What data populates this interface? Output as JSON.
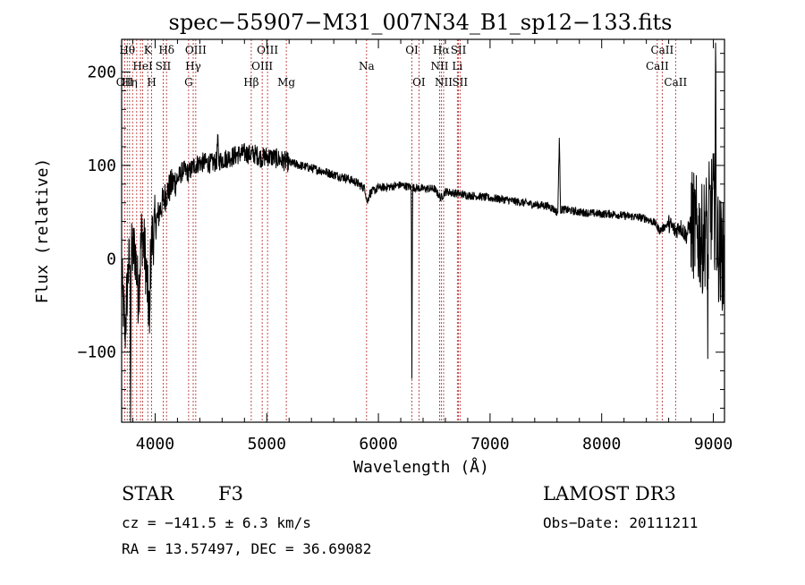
{
  "chart_data": {
    "type": "line",
    "title": "spec−55907−M31_007N34_B1_sp12−133.fits",
    "xlabel": "Wavelength (Å)",
    "ylabel": "Flux (relative)",
    "xlim": [
      3700,
      9100
    ],
    "ylim": [
      -175,
      235
    ],
    "xticks": [
      {
        "value": 4000,
        "label": "4000"
      },
      {
        "value": 5000,
        "label": "5000"
      },
      {
        "value": 6000,
        "label": "6000"
      },
      {
        "value": 7000,
        "label": "7000"
      },
      {
        "value": 8000,
        "label": "8000"
      },
      {
        "value": 9000,
        "label": "9000"
      }
    ],
    "yticks": [
      {
        "value": -100,
        "label": "−100"
      },
      {
        "value": 0,
        "label": "0"
      },
      {
        "value": 100,
        "label": "100"
      },
      {
        "value": 200,
        "label": "200"
      }
    ],
    "lines": [
      {
        "wl": 3727,
        "label": "OII",
        "row": 3
      },
      {
        "wl": 3750,
        "label": "Hθ",
        "row": 1
      },
      {
        "wl": 3771,
        "label": "Hη",
        "row": 3
      },
      {
        "wl": 3798,
        "label": "",
        "row": 0
      },
      {
        "wl": 3835,
        "label": "",
        "row": 0
      },
      {
        "wl": 3869,
        "label": "",
        "row": 0
      },
      {
        "wl": 3889,
        "label": "HeI",
        "row": 2
      },
      {
        "wl": 3934,
        "label": "K",
        "row": 1
      },
      {
        "wl": 3969,
        "label": "H",
        "row": 3
      },
      {
        "wl": 4072,
        "label": "SII",
        "row": 2
      },
      {
        "wl": 4102,
        "label": "Hδ",
        "row": 1
      },
      {
        "wl": 4300,
        "label": "G",
        "row": 3
      },
      {
        "wl": 4341,
        "label": "Hγ",
        "row": 2
      },
      {
        "wl": 4364,
        "label": "OIII",
        "row": 1
      },
      {
        "wl": 4861,
        "label": "Hβ",
        "row": 3
      },
      {
        "wl": 4959,
        "label": "OIII",
        "row": 2
      },
      {
        "wl": 5007,
        "label": "OIII",
        "row": 1
      },
      {
        "wl": 5175,
        "label": "Mg",
        "row": 3
      },
      {
        "wl": 5894,
        "label": "Na",
        "row": 2
      },
      {
        "wl": 6300,
        "label": "OI",
        "row": 1
      },
      {
        "wl": 6363,
        "label": "OI",
        "row": 3
      },
      {
        "wl": 6548,
        "label": "NII",
        "row": 2
      },
      {
        "wl": 6563,
        "label": "Hα",
        "row": 1
      },
      {
        "wl": 6584,
        "label": "NII",
        "row": 3
      },
      {
        "wl": 6707,
        "label": "Li",
        "row": 2
      },
      {
        "wl": 6717,
        "label": "SII",
        "row": 1
      },
      {
        "wl": 6731,
        "label": "SII",
        "row": 3
      },
      {
        "wl": 8498,
        "label": "CaII",
        "row": 2
      },
      {
        "wl": 8542,
        "label": "CaII",
        "row": 1
      },
      {
        "wl": 8662,
        "label": "CaII",
        "row": 3
      }
    ],
    "anchors": [
      [
        3700,
        -20
      ],
      [
        3730,
        -80
      ],
      [
        3760,
        -10
      ],
      [
        3790,
        5
      ],
      [
        3820,
        10
      ],
      [
        3850,
        -40
      ],
      [
        3880,
        30
      ],
      [
        3910,
        5
      ],
      [
        3940,
        -50
      ],
      [
        3970,
        20
      ],
      [
        4000,
        35
      ],
      [
        4050,
        55
      ],
      [
        4100,
        70
      ],
      [
        4150,
        80
      ],
      [
        4200,
        85
      ],
      [
        4250,
        95
      ],
      [
        4300,
        92
      ],
      [
        4350,
        100
      ],
      [
        4400,
        103
      ],
      [
        4450,
        103
      ],
      [
        4500,
        102
      ],
      [
        4550,
        104
      ],
      [
        4600,
        106
      ],
      [
        4650,
        108
      ],
      [
        4700,
        110
      ],
      [
        4750,
        112
      ],
      [
        4800,
        113
      ],
      [
        4850,
        112
      ],
      [
        4900,
        112
      ],
      [
        4950,
        108
      ],
      [
        5000,
        110
      ],
      [
        5100,
        107
      ],
      [
        5200,
        103
      ],
      [
        5300,
        100
      ],
      [
        5400,
        97
      ],
      [
        5500,
        94
      ],
      [
        5600,
        90
      ],
      [
        5700,
        87
      ],
      [
        5800,
        82
      ],
      [
        5880,
        75
      ],
      [
        5900,
        60
      ],
      [
        5920,
        70
      ],
      [
        6000,
        76
      ],
      [
        6100,
        77
      ],
      [
        6200,
        79
      ],
      [
        6280,
        77
      ],
      [
        6400,
        75
      ],
      [
        6500,
        75
      ],
      [
        6560,
        65
      ],
      [
        6600,
        72
      ],
      [
        6700,
        70
      ],
      [
        6800,
        68
      ],
      [
        6900,
        67
      ],
      [
        7000,
        65
      ],
      [
        7100,
        64
      ],
      [
        7200,
        62
      ],
      [
        7300,
        60
      ],
      [
        7400,
        58
      ],
      [
        7500,
        57
      ],
      [
        7550,
        55
      ],
      [
        7600,
        50
      ],
      [
        7650,
        53
      ],
      [
        7700,
        52
      ],
      [
        7800,
        50
      ],
      [
        7900,
        49
      ],
      [
        8000,
        48
      ],
      [
        8100,
        48
      ],
      [
        8200,
        46
      ],
      [
        8300,
        45
      ],
      [
        8400,
        43
      ],
      [
        8480,
        38
      ],
      [
        8520,
        30
      ],
      [
        8600,
        38
      ],
      [
        8660,
        30
      ],
      [
        8700,
        35
      ],
      [
        8760,
        25
      ],
      [
        8800,
        40
      ],
      [
        8850,
        30
      ],
      [
        8900,
        20
      ],
      [
        8950,
        40
      ],
      [
        9000,
        60
      ],
      [
        9050,
        10
      ],
      [
        9100,
        0
      ]
    ],
    "features": [
      {
        "wl": 6300,
        "depth": -125,
        "width": 6
      },
      {
        "wl": 7620,
        "depth": 130,
        "width": 12
      },
      {
        "wl": 9020,
        "depth": 230,
        "width": 6
      },
      {
        "wl": 8950,
        "depth": -95,
        "width": 6
      },
      {
        "wl": 3780,
        "depth": -160,
        "width": 6
      },
      {
        "wl": 3950,
        "depth": -85,
        "width": 6
      },
      {
        "wl": 4560,
        "depth": 130,
        "width": 8
      }
    ]
  },
  "footer": {
    "class_label": "STAR",
    "subclass": "F3",
    "survey": "LAMOST DR3",
    "cz": "cz = −141.5 ± 6.3 km/s",
    "obs_date": "Obs−Date: 20111211",
    "radec": "RA =  13.57497, DEC =  36.69082"
  }
}
